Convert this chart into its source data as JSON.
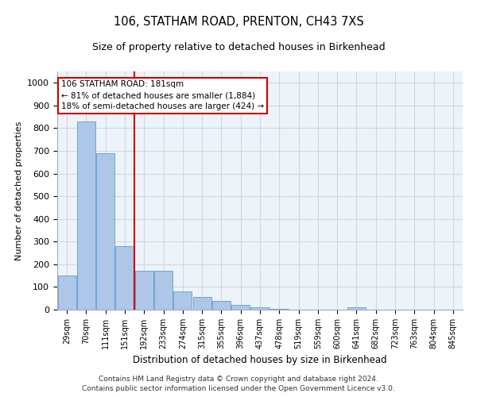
{
  "title": "106, STATHAM ROAD, PRENTON, CH43 7XS",
  "subtitle": "Size of property relative to detached houses in Birkenhead",
  "xlabel": "Distribution of detached houses by size in Birkenhead",
  "ylabel": "Number of detached properties",
  "categories": [
    "29sqm",
    "70sqm",
    "111sqm",
    "151sqm",
    "192sqm",
    "233sqm",
    "274sqm",
    "315sqm",
    "355sqm",
    "396sqm",
    "437sqm",
    "478sqm",
    "519sqm",
    "559sqm",
    "600sqm",
    "641sqm",
    "682sqm",
    "723sqm",
    "763sqm",
    "804sqm",
    "845sqm"
  ],
  "values": [
    150,
    830,
    690,
    280,
    170,
    170,
    80,
    55,
    40,
    20,
    10,
    5,
    0,
    0,
    0,
    10,
    0,
    0,
    0,
    0,
    0
  ],
  "bar_color": "#aec6e8",
  "bar_edge_color": "#5a9fd4",
  "annotation_text_line1": "106 STATHAM ROAD: 181sqm",
  "annotation_text_line2": "← 81% of detached houses are smaller (1,884)",
  "annotation_text_line3": "18% of semi-detached houses are larger (424) →",
  "annotation_box_color": "#cc0000",
  "vline_color": "#cc0000",
  "vline_x": 3.5,
  "ylim": [
    0,
    1050
  ],
  "yticks": [
    0,
    100,
    200,
    300,
    400,
    500,
    600,
    700,
    800,
    900,
    1000
  ],
  "grid_color": "#c8d8ea",
  "background_color": "#eef3fa",
  "footer_line1": "Contains HM Land Registry data © Crown copyright and database right 2024.",
  "footer_line2": "Contains public sector information licensed under the Open Government Licence v3.0."
}
